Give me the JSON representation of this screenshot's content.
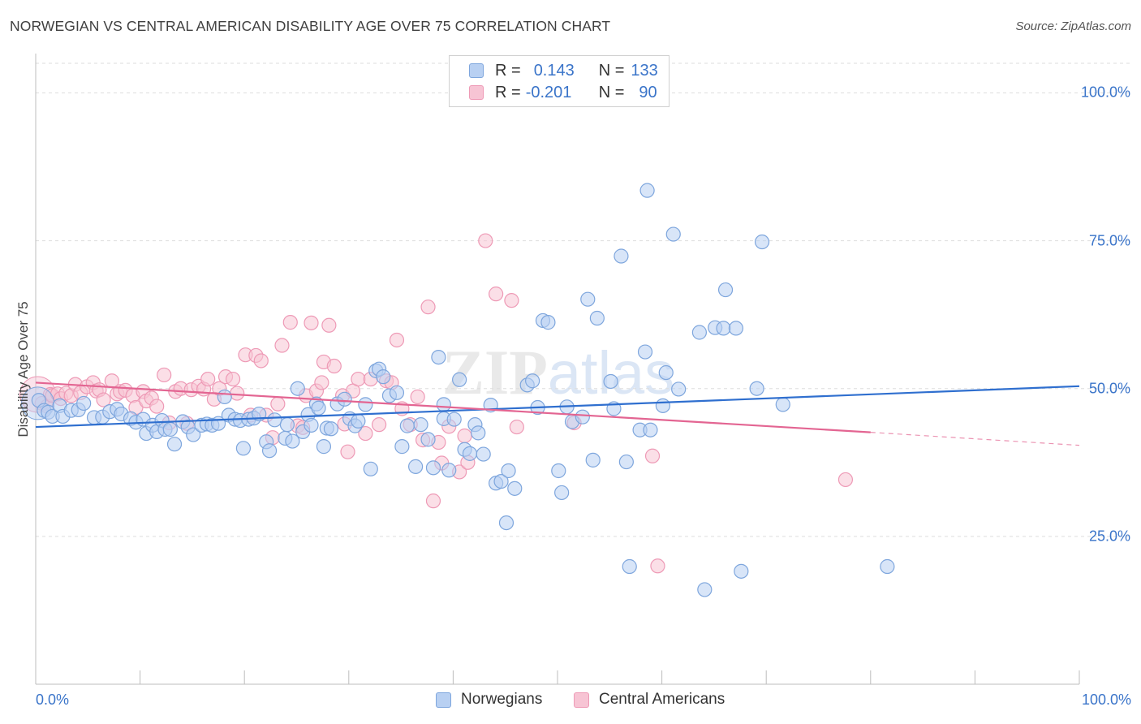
{
  "header": {
    "title": "NORWEGIAN VS CENTRAL AMERICAN DISABILITY AGE OVER 75 CORRELATION CHART",
    "source": "Source: ZipAtlas.com"
  },
  "legend": {
    "r_label": "R =",
    "n_label": "N =",
    "rows": [
      {
        "r": "0.143",
        "n": "133",
        "color": "#8fb4e8"
      },
      {
        "r": "-0.201",
        "n": "90",
        "color": "#f2a8c0"
      }
    ]
  },
  "colors": {
    "blue_fill": "#b8d0f2",
    "blue_stroke": "#7ea6dd",
    "blue_line": "#2f6fcf",
    "pink_fill": "#f7c4d4",
    "pink_stroke": "#ee9ab6",
    "pink_line": "#e36592",
    "axis_text": "#3a74c9",
    "grid": "#dddddd"
  },
  "chart_data": {
    "type": "scatter",
    "title": "NORWEGIAN VS CENTRAL AMERICAN DISABILITY AGE OVER 75 CORRELATION CHART",
    "xlabel": "",
    "ylabel": "Disability Age Over 75",
    "xlim": [
      0,
      100
    ],
    "ylim": [
      0,
      105
    ],
    "x_tick_labels": [
      "0.0%",
      "100.0%"
    ],
    "y_tick_labels": [
      "25.0%",
      "50.0%",
      "75.0%",
      "100.0%"
    ],
    "y_ticks": [
      25,
      50,
      75,
      100
    ],
    "grid": true,
    "legend_position": "bottom",
    "watermark": "ZIPatlas",
    "series": [
      {
        "name": "Norwegians",
        "r": 0.143,
        "n": 133,
        "trend": {
          "x": [
            0,
            100
          ],
          "y": [
            43.5,
            50.4
          ]
        },
        "points": [
          [
            0.3,
            48.0
          ],
          [
            0.8,
            46.3
          ],
          [
            1.2,
            46.0
          ],
          [
            1.6,
            45.3
          ],
          [
            2.3,
            47.1
          ],
          [
            2.6,
            45.3
          ],
          [
            3.4,
            46.3
          ],
          [
            4.1,
            46.4
          ],
          [
            4.6,
            47.5
          ],
          [
            5.6,
            45.1
          ],
          [
            6.4,
            45.2
          ],
          [
            7.1,
            46.1
          ],
          [
            7.8,
            46.5
          ],
          [
            8.2,
            45.7
          ],
          [
            9.1,
            44.9
          ],
          [
            9.6,
            44.3
          ],
          [
            10.3,
            44.8
          ],
          [
            10.6,
            42.4
          ],
          [
            11.2,
            43.8
          ],
          [
            11.6,
            42.7
          ],
          [
            12.1,
            44.6
          ],
          [
            12.4,
            43.1
          ],
          [
            12.9,
            43.1
          ],
          [
            13.3,
            40.6
          ],
          [
            14.1,
            44.4
          ],
          [
            14.6,
            43.5
          ],
          [
            15.1,
            42.2
          ],
          [
            15.9,
            43.8
          ],
          [
            16.4,
            44.0
          ],
          [
            16.9,
            43.8
          ],
          [
            17.5,
            44.1
          ],
          [
            18.1,
            48.6
          ],
          [
            18.5,
            45.5
          ],
          [
            19.1,
            44.8
          ],
          [
            19.6,
            44.6
          ],
          [
            19.9,
            39.9
          ],
          [
            20.4,
            44.8
          ],
          [
            20.9,
            45.0
          ],
          [
            21.4,
            45.7
          ],
          [
            22.1,
            41.0
          ],
          [
            22.4,
            39.5
          ],
          [
            22.9,
            44.7
          ],
          [
            23.9,
            41.6
          ],
          [
            24.1,
            43.9
          ],
          [
            24.6,
            41.1
          ],
          [
            25.1,
            50.0
          ],
          [
            25.6,
            42.7
          ],
          [
            26.1,
            45.6
          ],
          [
            26.4,
            43.8
          ],
          [
            26.9,
            47.4
          ],
          [
            27.1,
            46.7
          ],
          [
            27.6,
            40.2
          ],
          [
            27.9,
            43.3
          ],
          [
            28.3,
            43.2
          ],
          [
            28.9,
            47.4
          ],
          [
            29.6,
            48.2
          ],
          [
            30.1,
            44.9
          ],
          [
            30.6,
            43.7
          ],
          [
            30.9,
            44.5
          ],
          [
            31.6,
            47.3
          ],
          [
            32.1,
            36.4
          ],
          [
            32.6,
            53.0
          ],
          [
            32.9,
            53.3
          ],
          [
            33.3,
            52.0
          ],
          [
            33.9,
            48.8
          ],
          [
            34.6,
            49.3
          ],
          [
            35.1,
            40.2
          ],
          [
            35.6,
            43.7
          ],
          [
            36.4,
            36.8
          ],
          [
            36.9,
            43.9
          ],
          [
            37.6,
            41.4
          ],
          [
            38.1,
            36.6
          ],
          [
            38.6,
            55.3
          ],
          [
            39.1,
            44.9
          ],
          [
            39.1,
            47.3
          ],
          [
            39.6,
            36.2
          ],
          [
            40.1,
            44.8
          ],
          [
            40.6,
            51.5
          ],
          [
            41.1,
            39.7
          ],
          [
            41.6,
            39.0
          ],
          [
            42.1,
            43.9
          ],
          [
            42.4,
            42.5
          ],
          [
            42.9,
            38.9
          ],
          [
            43.6,
            47.2
          ],
          [
            44.1,
            34.0
          ],
          [
            44.6,
            34.3
          ],
          [
            45.1,
            27.3
          ],
          [
            45.3,
            36.1
          ],
          [
            45.9,
            33.1
          ],
          [
            47.1,
            50.6
          ],
          [
            47.6,
            51.3
          ],
          [
            48.1,
            46.8
          ],
          [
            48.6,
            61.5
          ],
          [
            49.1,
            61.2
          ],
          [
            50.1,
            36.1
          ],
          [
            50.4,
            32.4
          ],
          [
            50.9,
            46.9
          ],
          [
            51.4,
            44.4
          ],
          [
            52.4,
            45.2
          ],
          [
            52.9,
            65.1
          ],
          [
            53.4,
            37.9
          ],
          [
            53.8,
            61.9
          ],
          [
            55.1,
            51.2
          ],
          [
            55.4,
            46.6
          ],
          [
            56.1,
            72.4
          ],
          [
            56.6,
            37.6
          ],
          [
            56.9,
            19.9
          ],
          [
            57.9,
            43.0
          ],
          [
            58.4,
            56.2
          ],
          [
            58.6,
            83.5
          ],
          [
            58.9,
            43.0
          ],
          [
            60.1,
            47.1
          ],
          [
            60.4,
            52.7
          ],
          [
            61.1,
            76.1
          ],
          [
            61.6,
            49.9
          ],
          [
            63.6,
            59.5
          ],
          [
            64.1,
            16.0
          ],
          [
            65.1,
            60.3
          ],
          [
            65.9,
            60.2
          ],
          [
            66.1,
            66.7
          ],
          [
            67.1,
            60.2
          ],
          [
            67.6,
            19.1
          ],
          [
            69.1,
            50.0
          ],
          [
            69.6,
            74.8
          ],
          [
            71.6,
            47.3
          ],
          [
            81.6,
            19.9
          ]
        ]
      },
      {
        "name": "Central Americans",
        "r": -0.201,
        "n": 90,
        "trend": {
          "x": [
            0,
            80
          ],
          "y": [
            51.0,
            42.6
          ]
        },
        "trend_dashed": {
          "x": [
            80,
            100
          ],
          "y": [
            42.6,
            40.4
          ]
        },
        "points": [
          [
            0.6,
            47.5
          ],
          [
            1.1,
            47.0
          ],
          [
            1.4,
            49.0
          ],
          [
            1.6,
            48.8
          ],
          [
            2.1,
            49.1
          ],
          [
            2.4,
            48.3
          ],
          [
            2.9,
            49.2
          ],
          [
            3.4,
            48.8
          ],
          [
            3.8,
            50.7
          ],
          [
            4.3,
            49.3
          ],
          [
            4.9,
            50.3
          ],
          [
            5.5,
            51.0
          ],
          [
            5.8,
            49.6
          ],
          [
            6.1,
            49.8
          ],
          [
            6.5,
            48.1
          ],
          [
            7.3,
            51.3
          ],
          [
            7.8,
            49.1
          ],
          [
            8.1,
            49.5
          ],
          [
            8.6,
            49.7
          ],
          [
            9.3,
            48.8
          ],
          [
            9.6,
            46.8
          ],
          [
            10.3,
            49.5
          ],
          [
            10.6,
            47.9
          ],
          [
            11.1,
            48.4
          ],
          [
            11.6,
            47.0
          ],
          [
            12.3,
            52.3
          ],
          [
            12.8,
            44.2
          ],
          [
            13.4,
            49.5
          ],
          [
            13.9,
            50.0
          ],
          [
            14.5,
            44.1
          ],
          [
            14.9,
            49.8
          ],
          [
            15.6,
            50.4
          ],
          [
            16.1,
            49.9
          ],
          [
            16.5,
            51.6
          ],
          [
            17.1,
            48.2
          ],
          [
            17.6,
            50.0
          ],
          [
            18.2,
            52.0
          ],
          [
            18.9,
            51.6
          ],
          [
            19.3,
            49.2
          ],
          [
            20.1,
            55.7
          ],
          [
            20.6,
            45.5
          ],
          [
            21.1,
            55.6
          ],
          [
            21.6,
            54.7
          ],
          [
            22.1,
            45.5
          ],
          [
            22.7,
            41.7
          ],
          [
            23.2,
            47.4
          ],
          [
            23.6,
            57.3
          ],
          [
            24.4,
            61.2
          ],
          [
            25.1,
            43.7
          ],
          [
            25.6,
            43.4
          ],
          [
            25.9,
            48.8
          ],
          [
            26.4,
            61.1
          ],
          [
            26.9,
            49.6
          ],
          [
            27.4,
            51.0
          ],
          [
            27.6,
            54.5
          ],
          [
            28.1,
            60.7
          ],
          [
            28.6,
            53.8
          ],
          [
            29.4,
            48.8
          ],
          [
            29.6,
            44.0
          ],
          [
            29.9,
            39.3
          ],
          [
            30.4,
            49.6
          ],
          [
            30.9,
            51.6
          ],
          [
            31.6,
            42.4
          ],
          [
            32.1,
            51.6
          ],
          [
            32.9,
            43.9
          ],
          [
            33.6,
            51.3
          ],
          [
            34.1,
            51.0
          ],
          [
            34.6,
            58.2
          ],
          [
            35.1,
            46.6
          ],
          [
            35.9,
            43.9
          ],
          [
            36.6,
            48.6
          ],
          [
            37.1,
            41.3
          ],
          [
            37.6,
            63.8
          ],
          [
            38.1,
            31.0
          ],
          [
            38.6,
            40.9
          ],
          [
            38.9,
            37.4
          ],
          [
            39.6,
            43.6
          ],
          [
            40.6,
            35.9
          ],
          [
            41.1,
            42.0
          ],
          [
            41.4,
            37.5
          ],
          [
            43.1,
            75.0
          ],
          [
            44.1,
            66.0
          ],
          [
            45.6,
            64.9
          ],
          [
            46.1,
            43.5
          ],
          [
            51.6,
            44.2
          ],
          [
            59.1,
            38.6
          ],
          [
            59.6,
            20.0
          ],
          [
            77.6,
            34.6
          ]
        ]
      }
    ]
  },
  "bottom_legend": {
    "items": [
      "Norwegians",
      "Central Americans"
    ]
  }
}
